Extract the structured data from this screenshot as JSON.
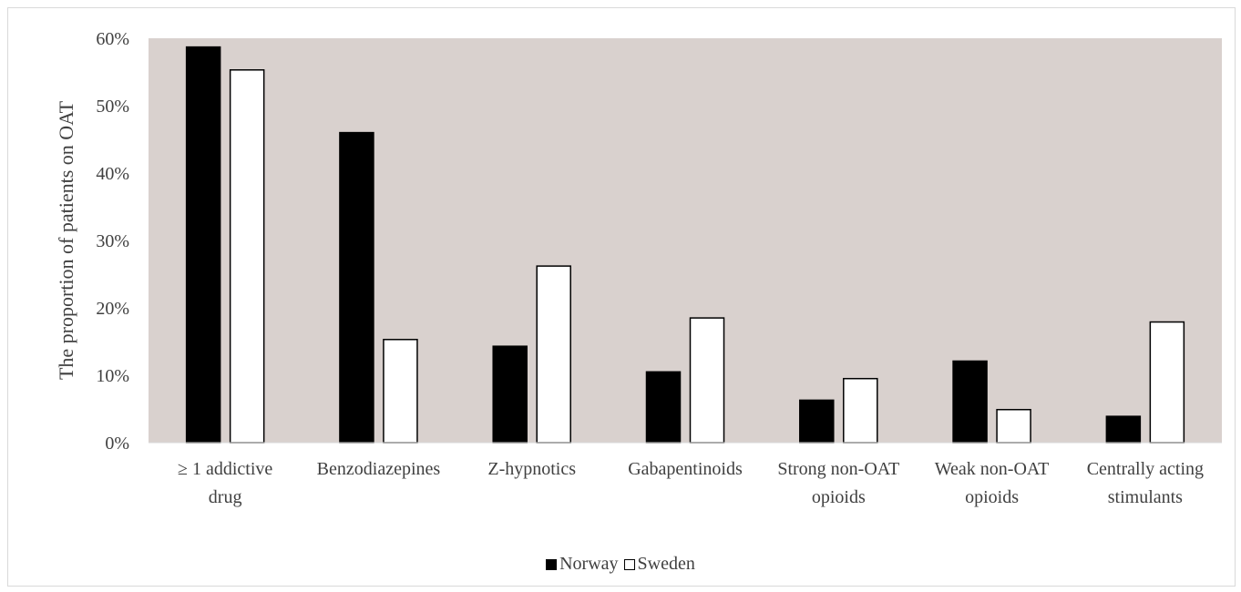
{
  "chart_data": {
    "type": "bar",
    "categories": [
      [
        "≥ 1 addictive",
        "drug"
      ],
      [
        "Benzodiazepines"
      ],
      [
        "Z-hypnotics"
      ],
      [
        "Gabapentinoids"
      ],
      [
        "Strong non-OAT",
        "opioids"
      ],
      [
        "Weak non-OAT",
        "opioids"
      ],
      [
        "Centrally acting",
        "stimulants"
      ]
    ],
    "series": [
      {
        "name": "Norway",
        "color": "#000000",
        "values": [
          0.587,
          0.46,
          0.143,
          0.105,
          0.063,
          0.121,
          0.039
        ]
      },
      {
        "name": "Sweden",
        "color": "#ffffff",
        "values": [
          0.553,
          0.153,
          0.262,
          0.185,
          0.095,
          0.049,
          0.179
        ]
      }
    ],
    "ylabel": "The proportion of patients on OAT",
    "xlabel": "",
    "title": "",
    "ylim": [
      0,
      0.6
    ],
    "yticks": [
      0,
      0.1,
      0.2,
      0.3,
      0.4,
      0.5,
      0.6
    ],
    "ytick_labels": [
      "0%",
      "10%",
      "20%",
      "30%",
      "40%",
      "50%",
      "60%"
    ],
    "grid": false,
    "legend_position": "bottom",
    "plot_background": "#d9d1ce"
  }
}
